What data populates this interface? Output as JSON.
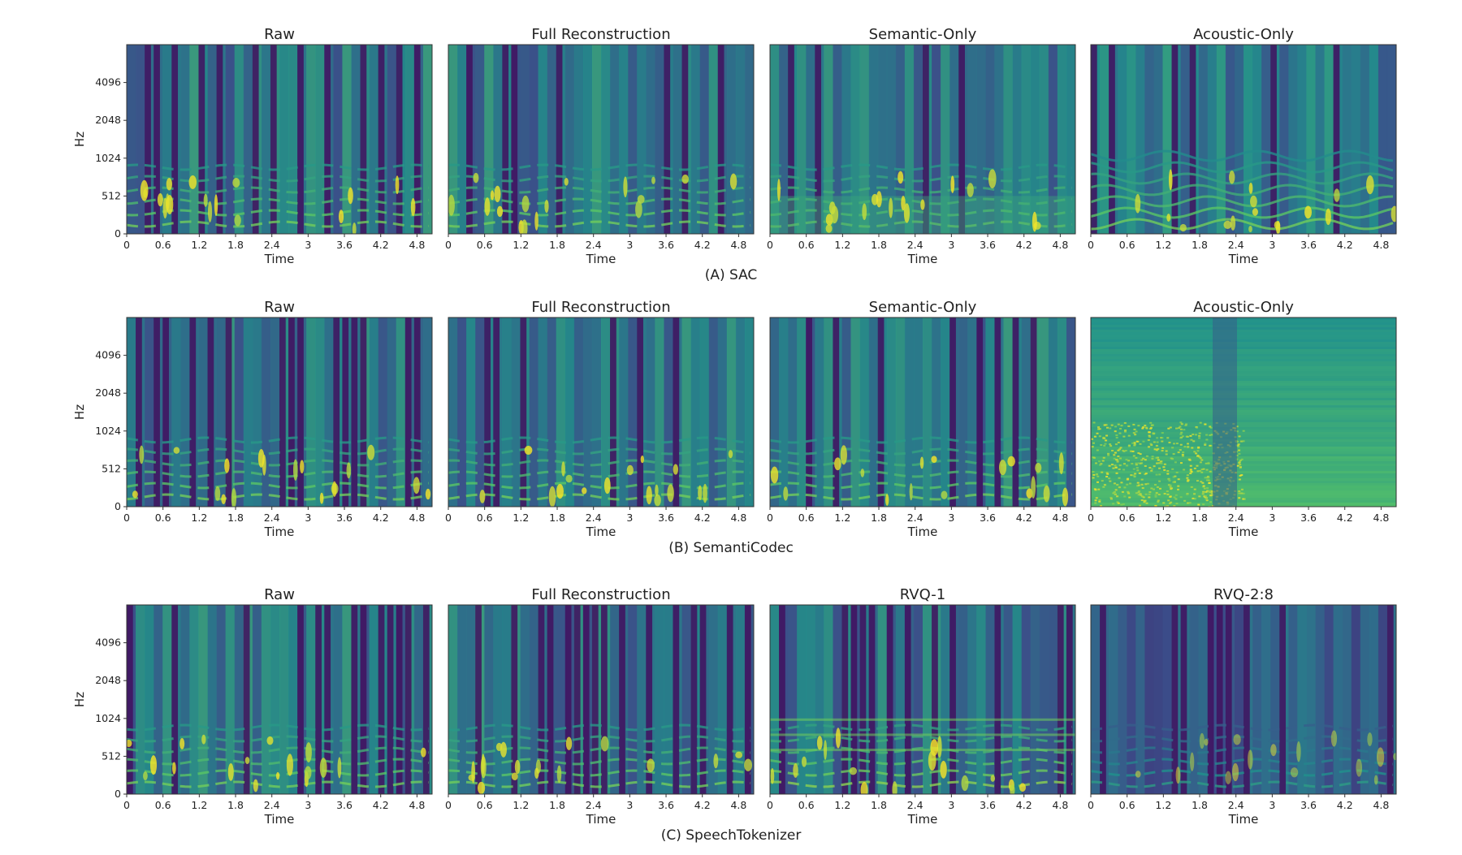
{
  "figure": {
    "groups": [
      {
        "caption": "(A) SAC",
        "panels": [
          {
            "title": "Raw",
            "pattern": "speech-clean"
          },
          {
            "title": "Full Reconstruction",
            "pattern": "speech-clean"
          },
          {
            "title": "Semantic-Only",
            "pattern": "speech-smeared"
          },
          {
            "title": "Acoustic-Only",
            "pattern": "pitch-contour"
          }
        ]
      },
      {
        "caption": "(B) SemantiCodec",
        "panels": [
          {
            "title": "Raw",
            "pattern": "speech-clean"
          },
          {
            "title": "Full Reconstruction",
            "pattern": "speech-clean"
          },
          {
            "title": "Semantic-Only",
            "pattern": "speech-clean"
          },
          {
            "title": "Acoustic-Only",
            "pattern": "noise-wash"
          }
        ]
      },
      {
        "caption": "(C) SpeechTokenizer",
        "panels": [
          {
            "title": "Raw",
            "pattern": "speech-clean"
          },
          {
            "title": "Full Reconstruction",
            "pattern": "speech-clean"
          },
          {
            "title": "RVQ-1",
            "pattern": "speech-banded"
          },
          {
            "title": "RVQ-2:8",
            "pattern": "speech-dark"
          }
        ]
      }
    ]
  },
  "chart_data": {
    "type": "heatmap",
    "xlabel": "Time",
    "ylabel": "Hz",
    "xticks": [
      "0",
      "0.6",
      "1.2",
      "1.8",
      "2.4",
      "3",
      "3.6",
      "4.2",
      "4.8"
    ],
    "yticks": [
      "0",
      "512",
      "1024",
      "2048",
      "4096"
    ],
    "xlim": [
      0,
      5.05
    ],
    "colormap": "viridis",
    "colors": {
      "low": "#440154",
      "mid": "#21918c",
      "high": "#fde725"
    }
  }
}
